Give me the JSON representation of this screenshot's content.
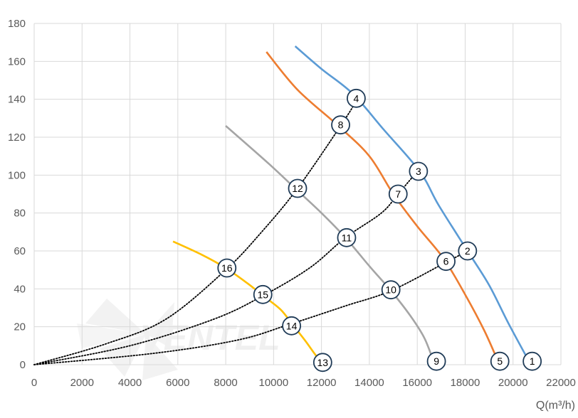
{
  "chart_data": {
    "type": "line",
    "title": "",
    "xlabel": "Q(m³/h)",
    "ylabel": "",
    "xlim": [
      0,
      22000
    ],
    "ylim": [
      0,
      180
    ],
    "x_ticks": [
      0,
      2000,
      4000,
      6000,
      8000,
      10000,
      12000,
      14000,
      16000,
      18000,
      20000,
      22000
    ],
    "y_ticks": [
      0,
      20,
      40,
      60,
      80,
      100,
      120,
      140,
      160,
      180
    ],
    "grid": true,
    "legend": "none",
    "colors": {
      "blue": "#5b9bd5",
      "orange": "#ed7d31",
      "gray": "#a5a5a5",
      "yellow": "#ffc000",
      "dotted": "#000000",
      "grid": "#d9d9d9"
    },
    "series": [
      {
        "color": "#5b9bd5",
        "style": "solid",
        "points": [
          [
            10900,
            168
          ],
          [
            12000,
            156
          ],
          [
            13300,
            143
          ],
          [
            14600,
            124
          ],
          [
            16100,
            102
          ],
          [
            16900,
            84
          ],
          [
            18100,
            60
          ],
          [
            19000,
            42
          ],
          [
            19800,
            22
          ],
          [
            20700,
            1
          ]
        ]
      },
      {
        "color": "#ed7d31",
        "style": "solid",
        "points": [
          [
            9700,
            165
          ],
          [
            11000,
            145
          ],
          [
            12700,
            126
          ],
          [
            14000,
            110
          ],
          [
            15000,
            90
          ],
          [
            16000,
            73
          ],
          [
            17100,
            56
          ],
          [
            18000,
            37
          ],
          [
            18800,
            18
          ],
          [
            19400,
            1
          ]
        ]
      },
      {
        "color": "#a5a5a5",
        "style": "solid",
        "points": [
          [
            8000,
            126
          ],
          [
            9800,
            106
          ],
          [
            10900,
            93
          ],
          [
            12000,
            80
          ],
          [
            13000,
            67
          ],
          [
            14000,
            52
          ],
          [
            14900,
            39
          ],
          [
            15700,
            26
          ],
          [
            16300,
            14
          ],
          [
            16700,
            1
          ]
        ]
      },
      {
        "color": "#ffc000",
        "style": "solid",
        "points": [
          [
            5800,
            65
          ],
          [
            7000,
            58
          ],
          [
            8000,
            51
          ],
          [
            8900,
            43
          ],
          [
            9600,
            36
          ],
          [
            10300,
            29
          ],
          [
            10800,
            21
          ],
          [
            11300,
            13
          ],
          [
            11700,
            6
          ],
          [
            12000,
            1
          ]
        ]
      },
      {
        "color": "#000000",
        "style": "dotted",
        "points": [
          [
            0,
            0
          ],
          [
            3000,
            11
          ],
          [
            5500,
            24
          ],
          [
            8000,
            50
          ],
          [
            9500,
            70
          ],
          [
            11000,
            93
          ],
          [
            12800,
            126
          ],
          [
            13500,
            140
          ]
        ]
      },
      {
        "color": "#000000",
        "style": "dotted",
        "points": [
          [
            0,
            0
          ],
          [
            4000,
            10
          ],
          [
            7500,
            24
          ],
          [
            9500,
            36
          ],
          [
            11500,
            51
          ],
          [
            13000,
            67
          ],
          [
            14500,
            80
          ],
          [
            15200,
            90
          ],
          [
            16000,
            102
          ]
        ]
      },
      {
        "color": "#000000",
        "style": "dotted",
        "points": [
          [
            0,
            0
          ],
          [
            5000,
            6
          ],
          [
            8500,
            13
          ],
          [
            10600,
            21
          ],
          [
            13000,
            31
          ],
          [
            14900,
            39
          ],
          [
            17200,
            54
          ],
          [
            18100,
            60
          ]
        ]
      }
    ],
    "point_labels": [
      {
        "label": "1",
        "x": 20800,
        "y": 1.8
      },
      {
        "label": "2",
        "x": 18100,
        "y": 60
      },
      {
        "label": "3",
        "x": 16050,
        "y": 102
      },
      {
        "label": "4",
        "x": 13450,
        "y": 140.5
      },
      {
        "label": "5",
        "x": 19450,
        "y": 1.8
      },
      {
        "label": "6",
        "x": 17200,
        "y": 54.5
      },
      {
        "label": "7",
        "x": 15200,
        "y": 90
      },
      {
        "label": "8",
        "x": 12800,
        "y": 126.5
      },
      {
        "label": "9",
        "x": 16800,
        "y": 1.8
      },
      {
        "label": "10",
        "x": 14900,
        "y": 39.5
      },
      {
        "label": "11",
        "x": 13050,
        "y": 67
      },
      {
        "label": "12",
        "x": 11000,
        "y": 93
      },
      {
        "label": "13",
        "x": 12050,
        "y": 1.2
      },
      {
        "label": "14",
        "x": 10750,
        "y": 20.5
      },
      {
        "label": "15",
        "x": 9550,
        "y": 37
      },
      {
        "label": "16",
        "x": 8050,
        "y": 51
      }
    ],
    "watermark": "VENTEL"
  }
}
